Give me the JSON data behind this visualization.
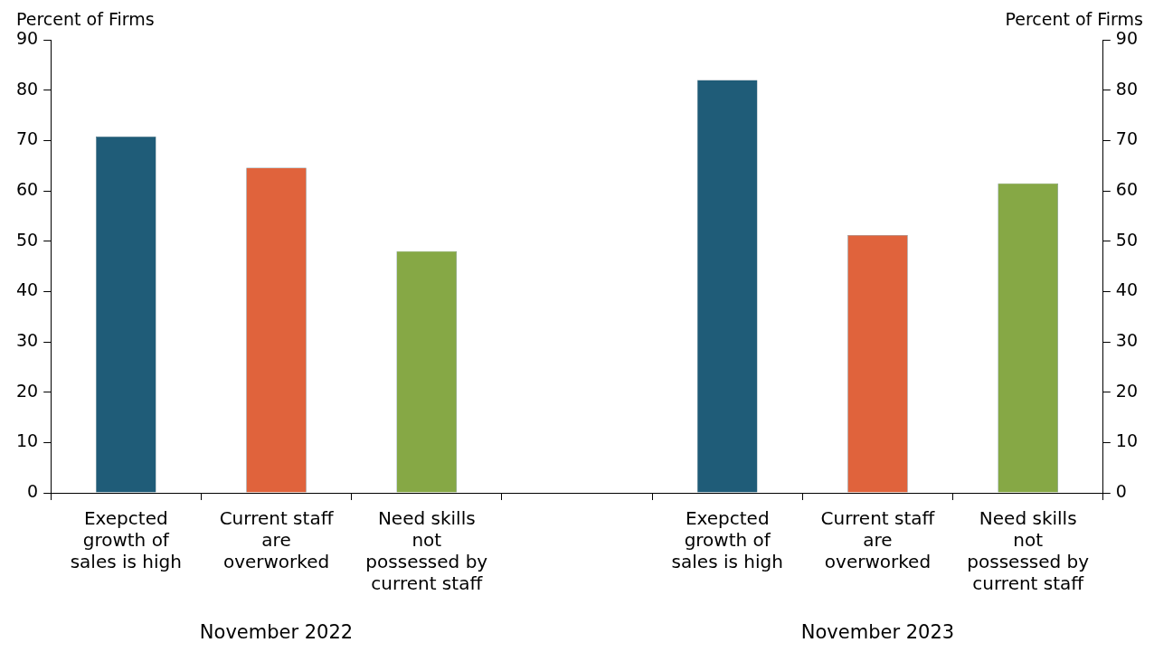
{
  "chart_data": {
    "type": "bar",
    "categories": [
      "Exepcted\ngrowth of\nsales is high",
      "Current staff\nare\noverworked",
      "Need skills\nnot\npossessed by\ncurrent staff",
      null,
      "Exepcted\ngrowth of\nsales is high",
      "Current staff\nare\noverworked",
      "Need skills\nnot\npossessed by\ncurrent staff"
    ],
    "values": [
      70.8,
      64.6,
      48,
      null,
      82,
      51.2,
      61.5
    ],
    "colors": [
      "#1f5c78",
      "#e0633c",
      "#86a845",
      "#ffffff",
      "#1f5c78",
      "#e0633c",
      "#86a845"
    ],
    "ylabel": "Percent of Firms",
    "y2label": "Percent of Firms",
    "ylim": [
      0,
      90
    ],
    "yticks": [
      0,
      10,
      20,
      30,
      40,
      50,
      60,
      70,
      80,
      90
    ],
    "y2lim": [
      0,
      90
    ],
    "y2ticks": [
      0,
      10,
      20,
      30,
      40,
      50,
      60,
      70,
      80,
      90
    ],
    "annotations": [
      "November 2022",
      "November 2023"
    ],
    "grid": false,
    "legend": false
  }
}
